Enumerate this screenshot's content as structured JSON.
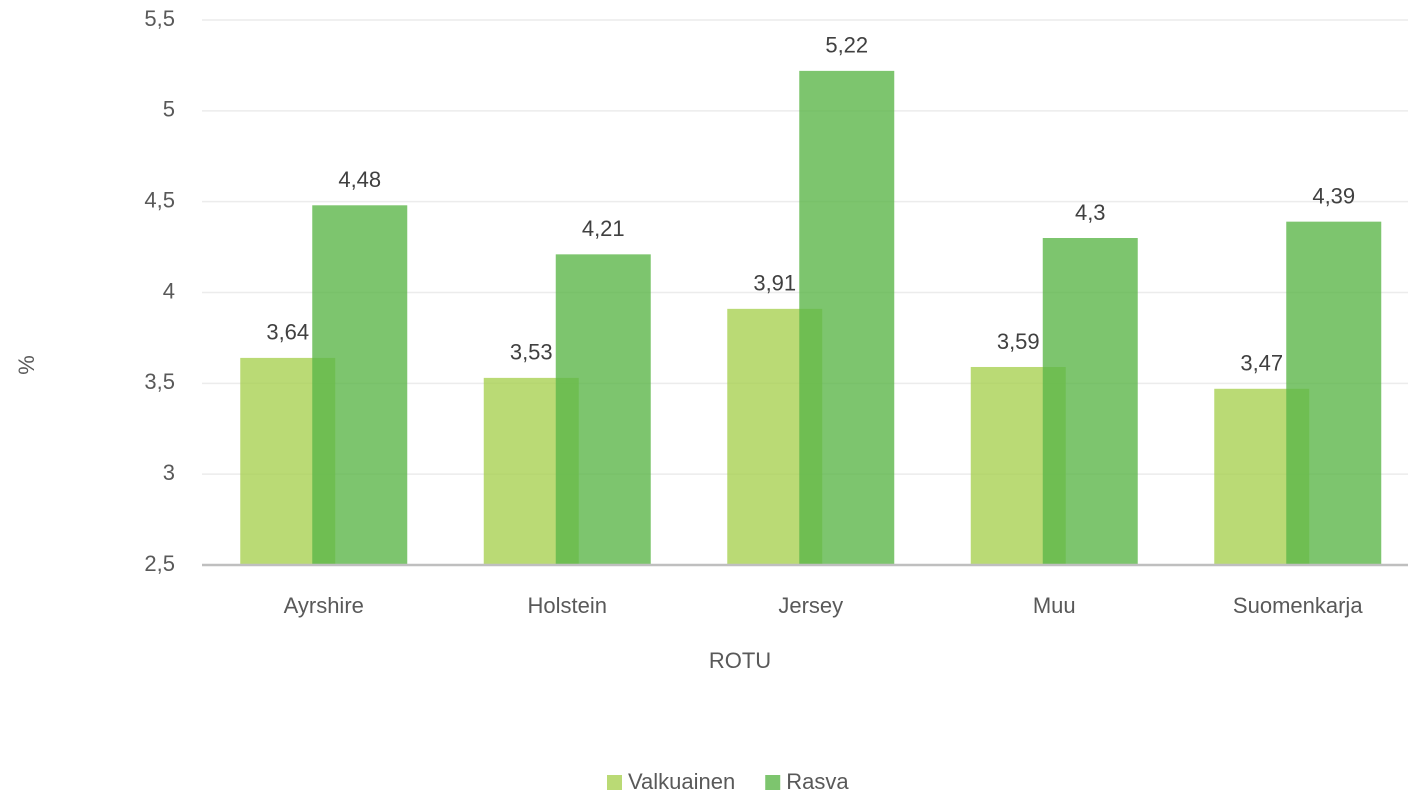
{
  "chart_data": {
    "type": "bar",
    "x_label": "ROTU",
    "y_label": "%",
    "categories": [
      "Ayrshire",
      "Holstein",
      "Jersey",
      "Muu",
      "Suomenkarja"
    ],
    "series": [
      {
        "name": "Valkuainen",
        "color": "#a9d152",
        "values": [
          3.64,
          3.53,
          3.91,
          3.59,
          3.47
        ],
        "value_labels": [
          "3,64",
          "3,53",
          "3,91",
          "3,59",
          "3,47"
        ]
      },
      {
        "name": "Rasva",
        "color": "#5cb64a",
        "values": [
          4.48,
          4.21,
          5.22,
          4.3,
          4.39
        ],
        "value_labels": [
          "4,48",
          "4,21",
          "5,22",
          "4,3",
          "4,39"
        ]
      }
    ],
    "ylim": [
      2.5,
      5.5
    ],
    "yticks": [
      {
        "value": 2.5,
        "label": "2,5"
      },
      3,
      {
        "value": 3.5,
        "label": "3,5"
      },
      4,
      {
        "value": 4.5,
        "label": "4,5"
      },
      5,
      {
        "value": 5.5,
        "label": "5,5"
      }
    ],
    "grid": true,
    "legend": "bottom"
  }
}
